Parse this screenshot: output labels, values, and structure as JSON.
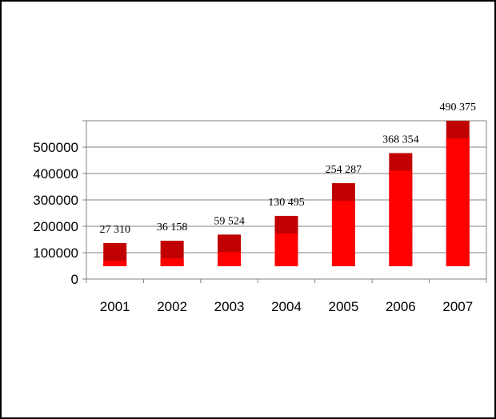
{
  "chart_data": {
    "type": "bar",
    "categories": [
      "2001",
      "2002",
      "2003",
      "2004",
      "2005",
      "2006",
      "2007"
    ],
    "data_labels": [
      "27 310",
      "36 158",
      "59 524",
      "130 495",
      "254 287",
      "368 354",
      "490 375"
    ],
    "series": [
      {
        "values": [
          27310,
          36158,
          59524,
          130495,
          254287,
          368354,
          490375
        ]
      }
    ],
    "yticks": [
      0,
      100000,
      200000,
      300000,
      400000,
      500000
    ],
    "ylim": [
      0,
      600000
    ],
    "grid": true,
    "legend": "none",
    "title": "",
    "xlabel": "",
    "ylabel": ""
  },
  "colors": {
    "bar_front": "#ff0000",
    "bar_top": "#c00000",
    "grid": "#808080",
    "frame": "#000000"
  }
}
